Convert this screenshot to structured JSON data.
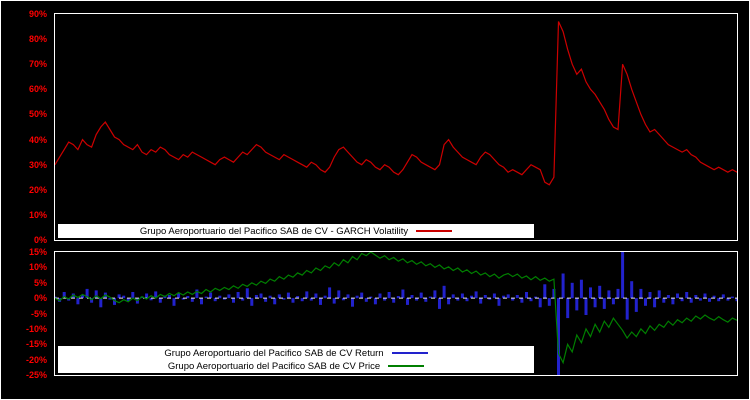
{
  "page": {
    "background": "#000000",
    "axis_label_color": "#ff0000"
  },
  "chart_data": [
    {
      "type": "line",
      "title": "",
      "xlabel": "",
      "ylabel": "",
      "ylim": [
        0,
        90
      ],
      "yticks": [
        "90%",
        "80%",
        "70%",
        "60%",
        "50%",
        "40%",
        "30%",
        "20%",
        "10%",
        "0%"
      ],
      "legend_position": "bottom-center",
      "grid": false,
      "series": [
        {
          "name": "Grupo Aeroportuario del Pacifico SAB de CV - GARCH Volatility",
          "color": "#cc0000",
          "values": [
            30,
            33,
            36,
            39,
            38,
            36,
            40,
            38,
            37,
            42,
            45,
            47,
            44,
            41,
            40,
            38,
            37,
            36,
            38,
            35,
            34,
            36,
            35,
            37,
            36,
            34,
            33,
            32,
            34,
            33,
            35,
            34,
            33,
            32,
            31,
            30,
            32,
            33,
            32,
            31,
            33,
            35,
            34,
            36,
            38,
            37,
            35,
            34,
            33,
            32,
            34,
            33,
            32,
            31,
            30,
            29,
            31,
            30,
            28,
            27,
            29,
            33,
            36,
            37,
            35,
            33,
            31,
            30,
            32,
            31,
            29,
            28,
            30,
            29,
            27,
            26,
            28,
            31,
            34,
            33,
            31,
            30,
            29,
            28,
            30,
            38,
            40,
            37,
            35,
            33,
            32,
            31,
            30,
            33,
            35,
            34,
            32,
            30,
            29,
            27,
            28,
            27,
            26,
            28,
            30,
            29,
            28,
            23,
            22,
            25,
            87,
            83,
            76,
            70,
            66,
            68,
            63,
            60,
            58,
            55,
            52,
            48,
            45,
            44,
            70,
            66,
            60,
            55,
            50,
            46,
            43,
            44,
            42,
            40,
            38,
            37,
            36,
            35,
            36,
            34,
            33,
            31,
            30,
            29,
            28,
            29,
            28,
            27,
            28,
            27
          ]
        }
      ]
    },
    {
      "type": "bar",
      "title": "",
      "xlabel": "",
      "ylabel": "",
      "ylim": [
        -25,
        15
      ],
      "yticks": [
        "15%",
        "10%",
        "5%",
        "0%",
        "-5%",
        "-10%",
        "-15%",
        "-20%",
        "-25%"
      ],
      "legend_position": "bottom-center",
      "grid": false,
      "zero_line": {
        "color": "#ffffff",
        "style": "dashed"
      },
      "series": [
        {
          "name": "Grupo Aeroportuario del Pacifico SAB de CV Return",
          "type": "bar",
          "color": "#2222cc",
          "values": [
            0.5,
            -1.2,
            2.0,
            -0.8,
            1.5,
            -2.0,
            1.0,
            3.0,
            -1.5,
            2.5,
            -3.0,
            1.8,
            -0.5,
            -2.2,
            1.2,
            0.8,
            -1.0,
            2.0,
            -1.8,
            0.5,
            1.5,
            -0.7,
            2.2,
            -1.5,
            0.8,
            1.0,
            -2.5,
            1.5,
            -0.5,
            0.7,
            -1.2,
            2.8,
            -2.0,
            0.5,
            1.8,
            -1.0,
            0.8,
            -0.5,
            1.2,
            -1.5,
            2.0,
            -0.8,
            3.2,
            -2.5,
            1.0,
            1.5,
            -1.2,
            0.8,
            -2.0,
            1.2,
            -0.5,
            1.8,
            -1.5,
            0.7,
            -1.0,
            2.2,
            -0.8,
            1.5,
            -2.2,
            0.8,
            3.5,
            -1.8,
            2.5,
            -0.7,
            1.2,
            -2.8,
            0.8,
            1.8,
            -1.2,
            0.5,
            -2.0,
            1.5,
            -0.8,
            2.0,
            -1.5,
            0.7,
            2.8,
            -2.2,
            1.0,
            -0.8,
            1.8,
            -1.2,
            0.5,
            2.5,
            -3.5,
            4.0,
            -2.0,
            1.2,
            -0.8,
            1.5,
            -1.0,
            0.8,
            2.2,
            -1.8,
            1.0,
            -0.5,
            1.5,
            -2.5,
            0.8,
            1.2,
            -0.8,
            1.0,
            -1.5,
            2.0,
            -1.0,
            0.5,
            -3.0,
            4.5,
            -2.5,
            3.0,
            -25.0,
            8.0,
            -6.5,
            5.0,
            -4.0,
            6.0,
            -5.5,
            3.5,
            -3.0,
            4.0,
            -3.5,
            2.5,
            -2.0,
            3.0,
            15.0,
            -7.0,
            5.5,
            -4.5,
            3.0,
            -2.5,
            2.0,
            -3.0,
            2.5,
            -1.5,
            1.0,
            -2.0,
            1.5,
            -1.0,
            2.0,
            -1.5,
            1.0,
            -0.8,
            1.5,
            -1.2,
            0.8,
            -1.0,
            1.2,
            -0.8,
            0.5,
            -1.0
          ]
        },
        {
          "name": "Grupo Aeroportuario del Pacifico SAB de CV Price",
          "type": "line",
          "color": "#007f00",
          "values": [
            0.0,
            -0.8,
            0.5,
            -0.3,
            1.0,
            0.2,
            1.2,
            0.5,
            -0.5,
            0.8,
            -0.2,
            1.0,
            0.3,
            -0.8,
            -1.5,
            -0.5,
            -1.2,
            0.0,
            -0.8,
            0.5,
            -0.3,
            0.8,
            0.0,
            1.2,
            0.5,
            1.5,
            0.8,
            1.8,
            1.0,
            2.0,
            1.2,
            2.2,
            1.5,
            2.8,
            2.0,
            3.2,
            2.5,
            3.5,
            2.8,
            4.0,
            3.2,
            4.5,
            3.8,
            5.0,
            4.2,
            5.5,
            4.8,
            6.2,
            5.5,
            7.0,
            6.2,
            7.5,
            6.8,
            8.2,
            7.5,
            9.0,
            8.2,
            9.8,
            9.0,
            10.5,
            9.8,
            11.5,
            10.5,
            12.5,
            11.5,
            13.5,
            12.5,
            14.5,
            13.8,
            15.0,
            14.0,
            13.0,
            13.8,
            12.5,
            13.2,
            12.0,
            12.8,
            11.5,
            12.2,
            11.0,
            11.8,
            10.5,
            11.2,
            10.0,
            10.8,
            9.5,
            10.2,
            9.0,
            9.8,
            8.5,
            9.2,
            8.0,
            8.8,
            7.5,
            8.2,
            7.0,
            7.8,
            6.5,
            7.5,
            8.0,
            7.0,
            7.8,
            6.5,
            7.2,
            6.0,
            7.0,
            5.8,
            6.5,
            5.5,
            6.2,
            -18.0,
            -21.0,
            -15.0,
            -17.5,
            -12.0,
            -14.5,
            -10.0,
            -12.5,
            -8.5,
            -11.0,
            -7.5,
            -9.5,
            -6.5,
            -8.5,
            -10.5,
            -13.0,
            -11.0,
            -12.5,
            -10.0,
            -11.5,
            -9.0,
            -10.5,
            -8.5,
            -9.5,
            -7.5,
            -8.8,
            -7.0,
            -8.0,
            -6.5,
            -7.5,
            -5.8,
            -6.8,
            -5.5,
            -6.5,
            -7.2,
            -6.0,
            -7.0,
            -7.8,
            -6.5,
            -7.2
          ]
        }
      ]
    }
  ]
}
